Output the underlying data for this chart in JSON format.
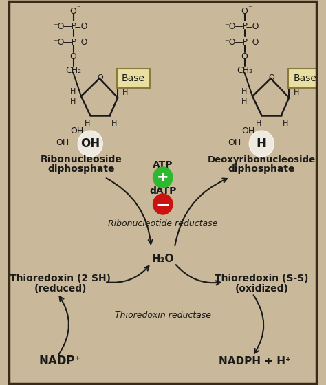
{
  "bg_color": "#c9b99a",
  "border_color": "#3a2a1a",
  "left_label1": "Ribonucleoside",
  "left_label2": "diphosphate",
  "right_label1": "Deoxyribonucleoside",
  "right_label2": "diphosphate",
  "atp_label": "ATP",
  "datp_label": "dATP",
  "h2o_label": "H₂O",
  "thio_red1": "Thioredoxin (2 SH)",
  "thio_red2": "(reduced)",
  "thio_ox1": "Thioredoxin (S-S)",
  "thio_ox2": "(oxidized)",
  "rr_label": "Ribonucleotide reductase",
  "tr_label": "Thioredoxin reductase",
  "nadp_label": "NADP⁺",
  "nadph_label": "NADPH + H⁺",
  "base_label": "Base",
  "green_circle_color": "#2db830",
  "red_circle_color": "#cc1111",
  "text_color": "#1a1a1a",
  "arrow_color": "#1a1a1a",
  "base_box_color": "#e8dfa0",
  "base_box_edge": "#8a7a40"
}
